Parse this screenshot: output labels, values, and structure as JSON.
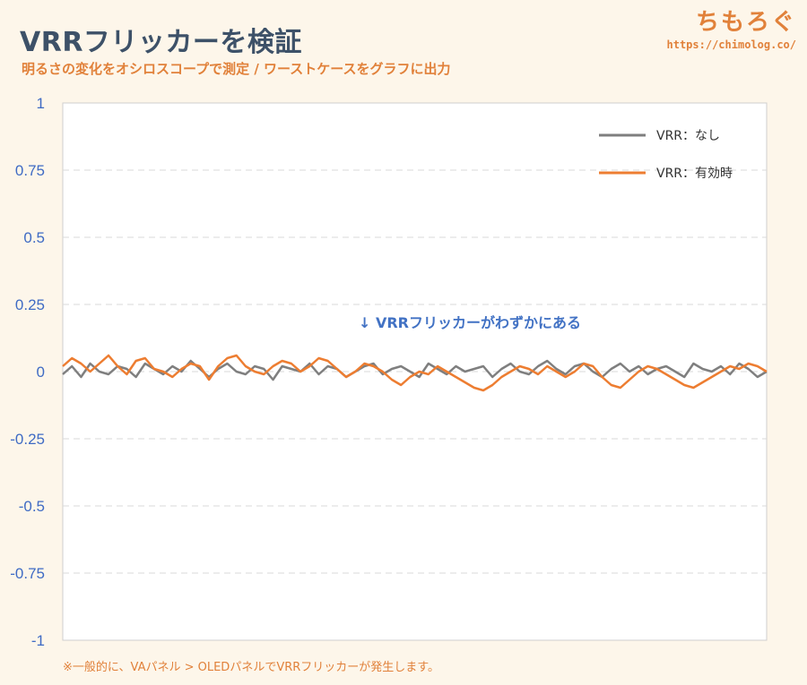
{
  "header": {
    "title": "VRRフリッカーを検証",
    "subtitle": "明るさの変化をオシロスコープで測定 / ワーストケースをグラフに出力",
    "brand_name": "ちもろぐ",
    "brand_url": "https://chimolog.co/"
  },
  "footnote": "※一般的に、VAパネル > OLEDパネルでVRRフリッカーが発生します。",
  "chart_data": {
    "type": "line",
    "ylim": [
      -1,
      1
    ],
    "yticks": [
      "1",
      "0.75",
      "0.5",
      "0.25",
      "0",
      "-0.25",
      "-0.5",
      "-0.75",
      "-1"
    ],
    "ytick_values": [
      1,
      0.75,
      0.5,
      0.25,
      0,
      -0.25,
      -0.5,
      -0.75,
      -1
    ],
    "grid": "horizontal-dashed",
    "legend_position": "top-right",
    "annotation": "↓ VRRフリッカーがわずかにある",
    "series": [
      {
        "name": "VRR：なし",
        "color": "#7f7f7f",
        "values": [
          -0.01,
          0.02,
          -0.02,
          0.03,
          0.0,
          -0.01,
          0.02,
          0.01,
          -0.02,
          0.03,
          0.01,
          -0.01,
          0.02,
          0.0,
          0.04,
          0.01,
          -0.02,
          0.01,
          0.03,
          0.0,
          -0.01,
          0.02,
          0.01,
          -0.03,
          0.02,
          0.01,
          0.0,
          0.03,
          -0.01,
          0.02,
          0.01,
          -0.02,
          0.0,
          0.02,
          0.03,
          -0.01,
          0.01,
          0.02,
          0.0,
          -0.02,
          0.03,
          0.01,
          -0.01,
          0.02,
          0.0,
          0.01,
          0.02,
          -0.02,
          0.01,
          0.03,
          0.0,
          -0.01,
          0.02,
          0.04,
          0.01,
          -0.01,
          0.02,
          0.03,
          0.0,
          -0.02,
          0.01,
          0.03,
          0.0,
          0.02,
          -0.01,
          0.01,
          0.02,
          0.0,
          -0.02,
          0.03,
          0.01,
          0.0,
          0.02,
          -0.01,
          0.03,
          0.01,
          -0.02,
          0.0
        ]
      },
      {
        "name": "VRR：有効時",
        "color": "#ed7d31",
        "values": [
          0.02,
          0.05,
          0.03,
          0.0,
          0.03,
          0.06,
          0.02,
          -0.01,
          0.04,
          0.05,
          0.01,
          0.0,
          -0.02,
          0.01,
          0.03,
          0.02,
          -0.03,
          0.02,
          0.05,
          0.06,
          0.02,
          0.0,
          -0.01,
          0.02,
          0.04,
          0.03,
          0.0,
          0.02,
          0.05,
          0.04,
          0.01,
          -0.02,
          0.0,
          0.03,
          0.02,
          0.0,
          -0.03,
          -0.05,
          -0.02,
          0.0,
          -0.01,
          0.02,
          0.0,
          -0.02,
          -0.04,
          -0.06,
          -0.07,
          -0.05,
          -0.02,
          0.0,
          0.02,
          0.01,
          -0.01,
          0.02,
          0.0,
          -0.02,
          0.0,
          0.03,
          0.02,
          -0.02,
          -0.05,
          -0.06,
          -0.03,
          0.0,
          0.02,
          0.01,
          -0.01,
          -0.03,
          -0.05,
          -0.06,
          -0.04,
          -0.02,
          0.0,
          0.02,
          0.01,
          0.03,
          0.02,
          0.0
        ]
      }
    ]
  }
}
